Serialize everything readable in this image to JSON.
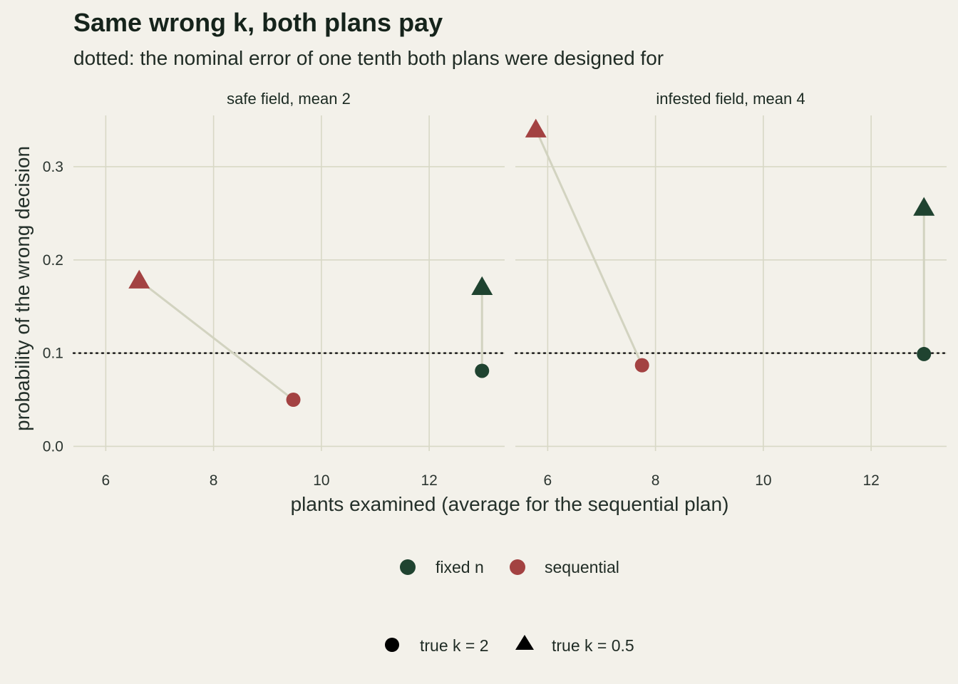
{
  "chart_data": {
    "type": "scatter",
    "title": "Same wrong k, both plans pay",
    "subtitle": "dotted: the nominal error of one tenth both plans were designed for",
    "xlabel": "plants examined (average for the sequential plan)",
    "ylabel": "probability of the wrong decision",
    "xlim": [
      5.4,
      13.4
    ],
    "ylim": [
      -0.005,
      0.355
    ],
    "x_ticks": [
      6,
      8,
      10,
      12
    ],
    "y_ticks": [
      0.0,
      0.1,
      0.2,
      0.3
    ],
    "reference_line": {
      "y": 0.1,
      "style": "dotted"
    },
    "grid": true,
    "colors": {
      "fixed n": "#1f4330",
      "sequential": "#a34242",
      "connector": "#d2d3c0",
      "background": "#f3f1ea"
    },
    "panels": [
      {
        "label": "safe field, mean 2",
        "points": [
          {
            "plan": "sequential",
            "k": "true k = 0.5",
            "x": 6.62,
            "y": 0.178
          },
          {
            "plan": "sequential",
            "k": "true k = 2",
            "x": 9.48,
            "y": 0.05
          },
          {
            "plan": "fixed n",
            "k": "true k = 0.5",
            "x": 12.98,
            "y": 0.171
          },
          {
            "plan": "fixed n",
            "k": "true k = 2",
            "x": 12.98,
            "y": 0.081
          }
        ]
      },
      {
        "label": "infested field, mean 4",
        "points": [
          {
            "plan": "sequential",
            "k": "true k = 0.5",
            "x": 5.78,
            "y": 0.34
          },
          {
            "plan": "sequential",
            "k": "true k = 2",
            "x": 7.75,
            "y": 0.087
          },
          {
            "plan": "fixed n",
            "k": "true k = 0.5",
            "x": 12.98,
            "y": 0.256
          },
          {
            "plan": "fixed n",
            "k": "true k = 2",
            "x": 12.98,
            "y": 0.099
          }
        ]
      }
    ],
    "legend_color": {
      "position": "bottom",
      "items": [
        "fixed n",
        "sequential"
      ]
    },
    "legend_shape": {
      "position": "bottom",
      "items": [
        "true k = 2",
        "true k = 0.5"
      ]
    }
  }
}
